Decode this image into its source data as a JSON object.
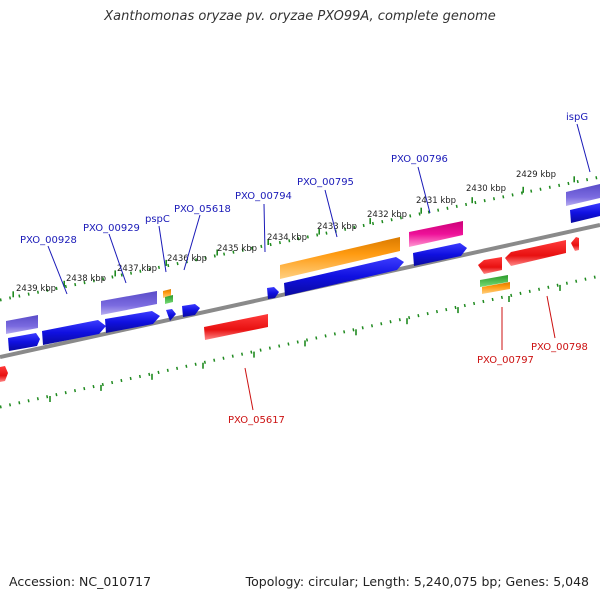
{
  "title": "Xanthomonas oryzae pv. oryzae PXO99A, complete genome",
  "footer": {
    "accession": "Accession: NC_010717",
    "topology": "Topology: circular; Length: 5,240,075 bp; Genes: 5,048"
  },
  "colors": {
    "backbone": "#8a8a8a",
    "tick": "#1f8a1f",
    "plus_label": "#1a1ab8",
    "minus_label": "#cc1111",
    "gene_blue": "#1010e0",
    "gene_red": "#ee1111",
    "gene_purple": "#6a5acd",
    "gene_orange": "#ff9900",
    "gene_magenta": "#ee1199",
    "gene_green": "#33bb33"
  },
  "kbp_labels": [
    "2439 kbp",
    "2438 kbp",
    "2437 kbp",
    "2436 kbp",
    "2435 kbp",
    "2434 kbp",
    "2433 kbp",
    "2432 kbp",
    "2431 kbp",
    "2430 kbp",
    "2429 kbp"
  ],
  "gene_labels_plus": [
    "PXO_00928",
    "PXO_00929",
    "pspC",
    "PXO_05618",
    "PXO_00794",
    "PXO_00795",
    "PXO_00796",
    "ispG"
  ],
  "gene_labels_minus": [
    "PXO_05617",
    "PXO_00797",
    "PXO_00798"
  ]
}
